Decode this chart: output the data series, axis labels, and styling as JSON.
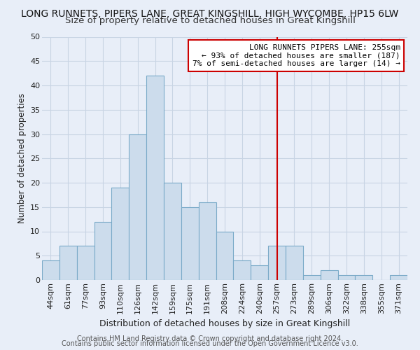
{
  "title": "LONG RUNNETS, PIPERS LANE, GREAT KINGSHILL, HIGH WYCOMBE, HP15 6LW",
  "subtitle": "Size of property relative to detached houses in Great Kingshill",
  "xlabel": "Distribution of detached houses by size in Great Kingshill",
  "ylabel": "Number of detached properties",
  "bar_labels": [
    "44sqm",
    "61sqm",
    "77sqm",
    "93sqm",
    "110sqm",
    "126sqm",
    "142sqm",
    "159sqm",
    "175sqm",
    "191sqm",
    "208sqm",
    "224sqm",
    "240sqm",
    "257sqm",
    "273sqm",
    "289sqm",
    "306sqm",
    "322sqm",
    "338sqm",
    "355sqm",
    "371sqm"
  ],
  "bar_values": [
    4,
    7,
    7,
    12,
    19,
    30,
    42,
    20,
    15,
    16,
    10,
    4,
    3,
    7,
    7,
    1,
    2,
    1,
    1,
    0,
    1
  ],
  "bar_color": "#ccdcec",
  "bar_edge_color": "#7aaac8",
  "grid_color": "#c8d4e4",
  "background_color": "#e8eef8",
  "plot_bg_color": "#e8eef8",
  "vline_x_index": 13,
  "vline_color": "#cc0000",
  "annotation_text": "LONG RUNNETS PIPERS LANE: 255sqm\n← 93% of detached houses are smaller (187)\n7% of semi-detached houses are larger (14) →",
  "annotation_box_color": "#ffffff",
  "annotation_box_edge": "#cc0000",
  "footer_line1": "Contains HM Land Registry data © Crown copyright and database right 2024.",
  "footer_line2": "Contains public sector information licensed under the Open Government Licence v3.0.",
  "ylim": [
    0,
    50
  ],
  "yticks": [
    0,
    5,
    10,
    15,
    20,
    25,
    30,
    35,
    40,
    45,
    50
  ],
  "title_fontsize": 10,
  "subtitle_fontsize": 9.5,
  "xlabel_fontsize": 9,
  "ylabel_fontsize": 8.5,
  "tick_fontsize": 8,
  "annotation_fontsize": 8,
  "footer_fontsize": 7
}
